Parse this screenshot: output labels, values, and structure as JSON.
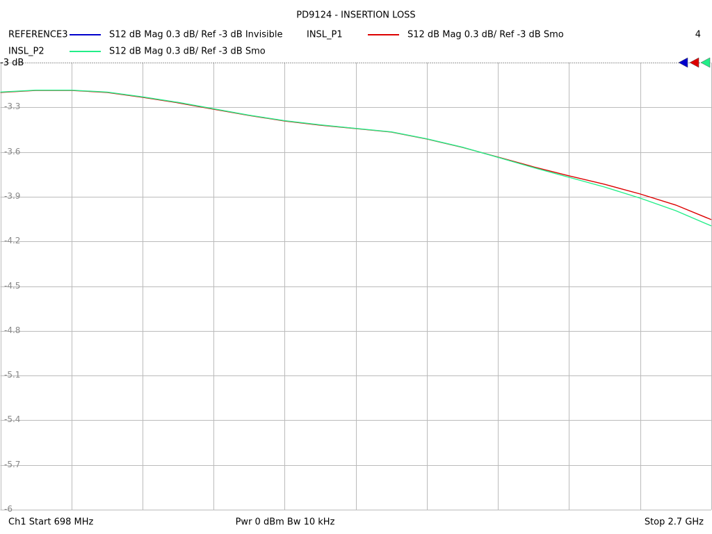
{
  "chart_data": {
    "type": "line",
    "title": "PD9124 - INSERTION LOSS",
    "annotation": "4",
    "start_label": "Ch1  Start  698 MHz",
    "info_label": "Pwr  0 dBm  Bw  10 kHz",
    "stop_label": "Stop  2.7 GHz",
    "x": [
      698,
      798.1,
      898.2,
      998.3,
      1098.4,
      1198.5,
      1298.6,
      1398.7,
      1498.8,
      1598.9,
      1699,
      1799.1,
      1899.2,
      1999.3,
      2099.4,
      2199.5,
      2299.6,
      2399.7,
      2499.8,
      2599.9,
      2700
    ],
    "xlim": [
      698,
      2700
    ],
    "xticks": [
      698,
      898.2,
      1098.4,
      1298.6,
      1498.8,
      1699,
      1899.2,
      2099.4,
      2299.6,
      2499.8,
      2700
    ],
    "ylim": [
      -6,
      -3
    ],
    "yticks": [
      {
        "value": -3,
        "label": "-3 dB"
      },
      -3.3,
      -3.6,
      -3.9,
      -4.2,
      -4.5,
      -4.8,
      -5.1,
      -5.4,
      -5.7,
      -6
    ],
    "grid": true,
    "series": [
      {
        "name": "REFERENCE3",
        "label": "S12  dB Mag  0.3 dB/ Ref -3 dB  Invisible",
        "color": "#0000cc"
      },
      {
        "name": "INSL_P1",
        "label": "S12  dB Mag  0.3 dB/ Ref -3 dB  Smo",
        "color": "#dd0000",
        "values": [
          -3.2,
          -3.187,
          -3.187,
          -3.2,
          -3.233,
          -3.27,
          -3.313,
          -3.355,
          -3.392,
          -3.42,
          -3.443,
          -3.466,
          -3.513,
          -3.569,
          -3.634,
          -3.7,
          -3.76,
          -3.817,
          -3.882,
          -3.956,
          -4.054
        ]
      },
      {
        "name": "INSL_P2",
        "label": "S12  dB Mag  0.3 dB/ Ref -3 dB  Smo",
        "color": "#22ee88",
        "values": [
          -3.198,
          -3.185,
          -3.185,
          -3.198,
          -3.23,
          -3.267,
          -3.31,
          -3.353,
          -3.39,
          -3.418,
          -3.442,
          -3.465,
          -3.512,
          -3.568,
          -3.636,
          -3.705,
          -3.77,
          -3.835,
          -3.91,
          -3.994,
          -4.096
        ]
      }
    ]
  }
}
